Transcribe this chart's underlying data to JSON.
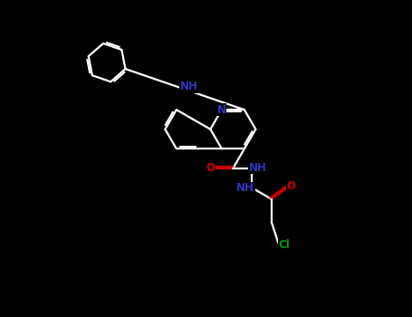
{
  "background_color": "#000000",
  "bond_color": "#ffffff",
  "nitrogen_color": "#3333bb",
  "oxygen_color": "#cc0000",
  "chlorine_color": "#009900",
  "line_width": 1.6,
  "font_size_atom": 8.5,
  "fig_width": 4.55,
  "fig_height": 3.5,
  "dpi": 100,
  "xlim": [
    0,
    10
  ],
  "ylim": [
    0,
    10
  ]
}
